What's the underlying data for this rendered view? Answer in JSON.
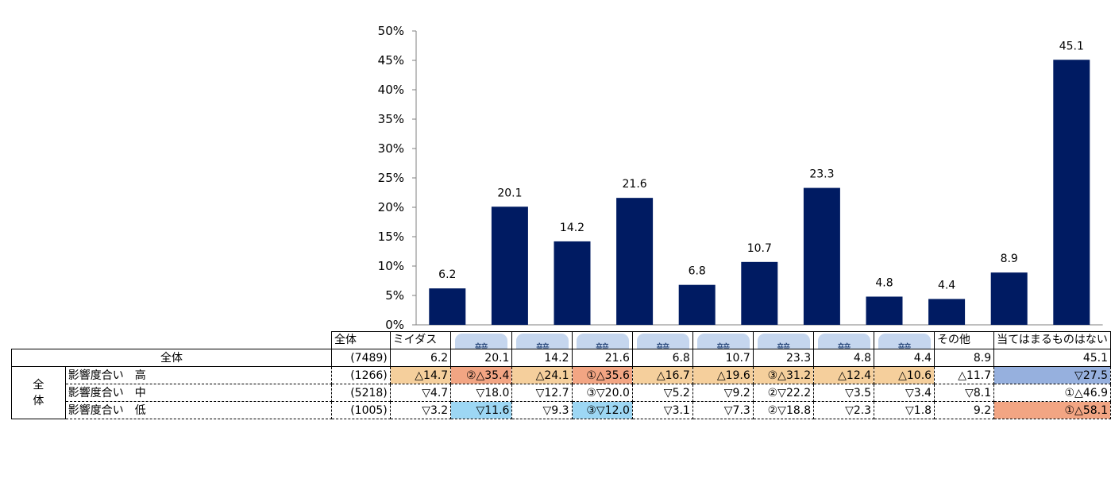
{
  "chart_data": {
    "type": "bar",
    "title": "",
    "xlabel": "",
    "ylabel": "",
    "ylim": [
      0,
      50
    ],
    "yticks": [
      "0%",
      "5%",
      "10%",
      "15%",
      "20%",
      "25%",
      "30%",
      "35%",
      "40%",
      "45%",
      "50%"
    ],
    "ytick_values": [
      0,
      5,
      10,
      15,
      20,
      25,
      30,
      35,
      40,
      45,
      50
    ],
    "values": [
      6.2,
      20.1,
      14.2,
      21.6,
      6.8,
      10.7,
      23.3,
      4.8,
      4.4,
      8.9,
      45.1
    ],
    "value_labels": [
      "6.2",
      "20.1",
      "14.2",
      "21.6",
      "6.8",
      "10.7",
      "23.3",
      "4.8",
      "4.4",
      "8.9",
      "45.1"
    ],
    "bar_color": "#001b62"
  },
  "table": {
    "corner_label": "全体",
    "columns": [
      {
        "label": "ミイダス",
        "masked": false
      },
      {
        "label": "",
        "masked": true
      },
      {
        "label": "",
        "masked": true
      },
      {
        "label": "",
        "masked": true
      },
      {
        "label": "",
        "masked": true
      },
      {
        "label": "",
        "masked": true
      },
      {
        "label": "",
        "masked": true
      },
      {
        "label": "",
        "masked": true
      },
      {
        "label": "",
        "masked": true
      },
      {
        "label": "その他",
        "masked": false
      },
      {
        "label": "当てはまるものはない",
        "masked": false
      }
    ],
    "cover_line1": "競",
    "cover_line2": "合",
    "total_row": {
      "label": "全体",
      "n": "(7489)",
      "values": [
        "6.2",
        "20.1",
        "14.2",
        "21.6",
        "6.8",
        "10.7",
        "23.3",
        "4.8",
        "4.4",
        "8.9",
        "45.1"
      ]
    },
    "group_label": "全体",
    "rows": [
      {
        "label": "影響度合い　高",
        "n": "(1266)",
        "values": [
          "△14.7",
          "②△35.4",
          "△24.1",
          "①△35.6",
          "△16.7",
          "△19.6",
          "③△31.2",
          "△12.4",
          "△10.6",
          "△11.7",
          "▽27.5"
        ],
        "highlights": [
          "hi",
          "top",
          "hi",
          "top",
          "hi",
          "hi",
          "hi",
          "hi",
          "hi",
          "",
          "bluedk"
        ]
      },
      {
        "label": "影響度合い　中",
        "n": "(5218)",
        "values": [
          "▽4.7",
          "▽18.0",
          "▽12.7",
          "③▽20.0",
          "▽5.2",
          "▽9.2",
          "②▽22.2",
          "▽3.5",
          "▽3.4",
          "▽8.1",
          "①△46.9"
        ],
        "highlights": [
          "",
          "",
          "",
          "",
          "",
          "",
          "",
          "",
          "",
          "",
          ""
        ]
      },
      {
        "label": "影響度合い　低",
        "n": "(1005)",
        "values": [
          "▽3.2",
          "▽11.6",
          "▽9.3",
          "③▽12.0",
          "▽3.1",
          "▽7.3",
          "②▽18.8",
          "▽2.3",
          "▽1.8",
          "9.2",
          "①△58.1"
        ],
        "highlights": [
          "",
          "bluelt",
          "",
          "bluelt",
          "",
          "",
          "",
          "",
          "",
          "",
          "top"
        ]
      }
    ]
  }
}
